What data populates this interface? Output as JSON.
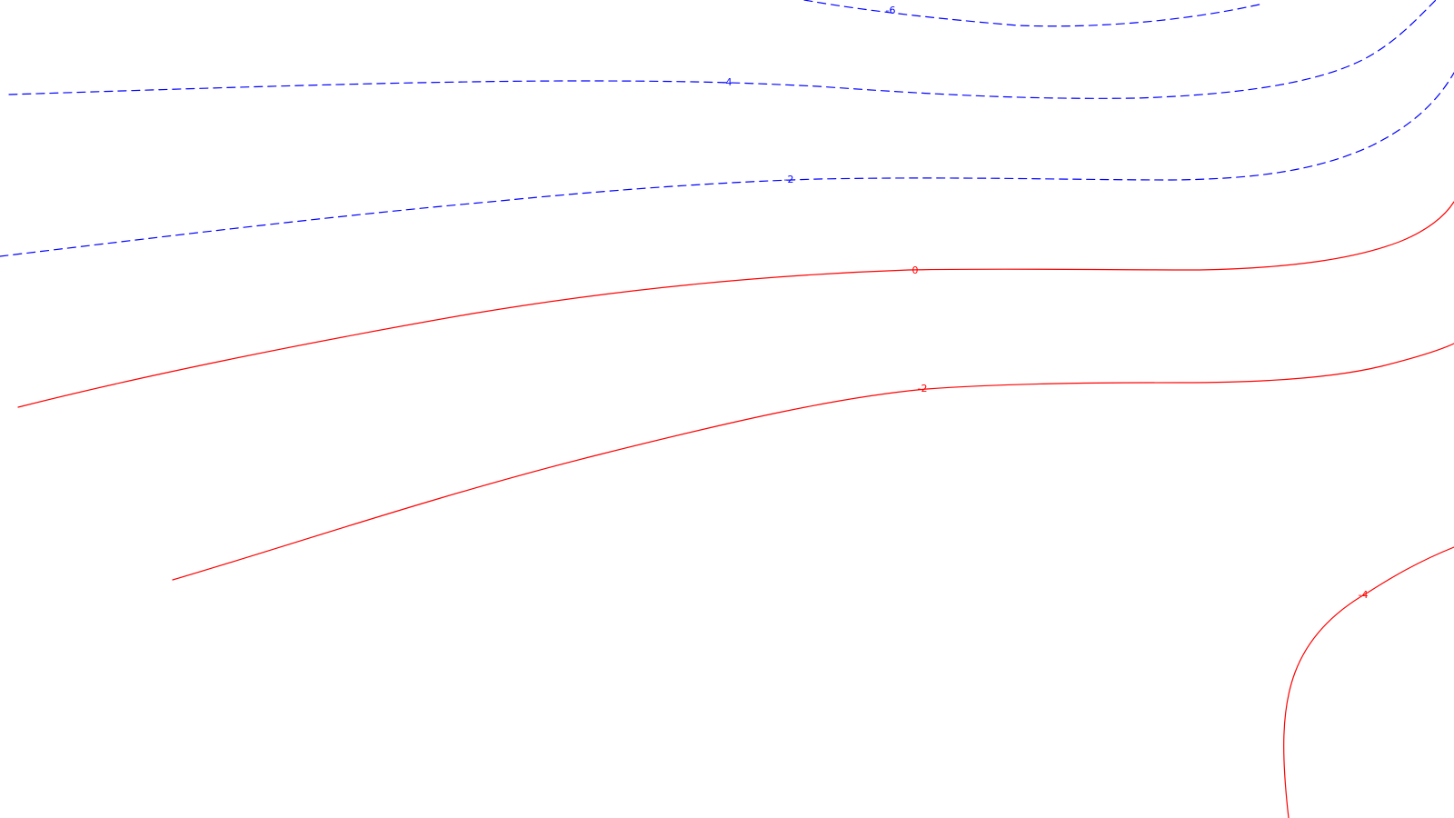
{
  "chart_data": {
    "type": "contour",
    "title": "",
    "colors": {
      "negative": "#0000ff",
      "positive": "#ff0000"
    },
    "levels": [
      {
        "value": -6,
        "label": "-6",
        "sign": "negative"
      },
      {
        "value": -4,
        "label": "-4",
        "sign": "negative"
      },
      {
        "value": -2,
        "label": "-2",
        "sign": "negative"
      },
      {
        "value": 0,
        "label": "0",
        "sign": "positive"
      },
      {
        "value": 2,
        "label": "2",
        "sign": "positive"
      },
      {
        "value": 4,
        "label": "4",
        "sign": "positive"
      }
    ]
  }
}
